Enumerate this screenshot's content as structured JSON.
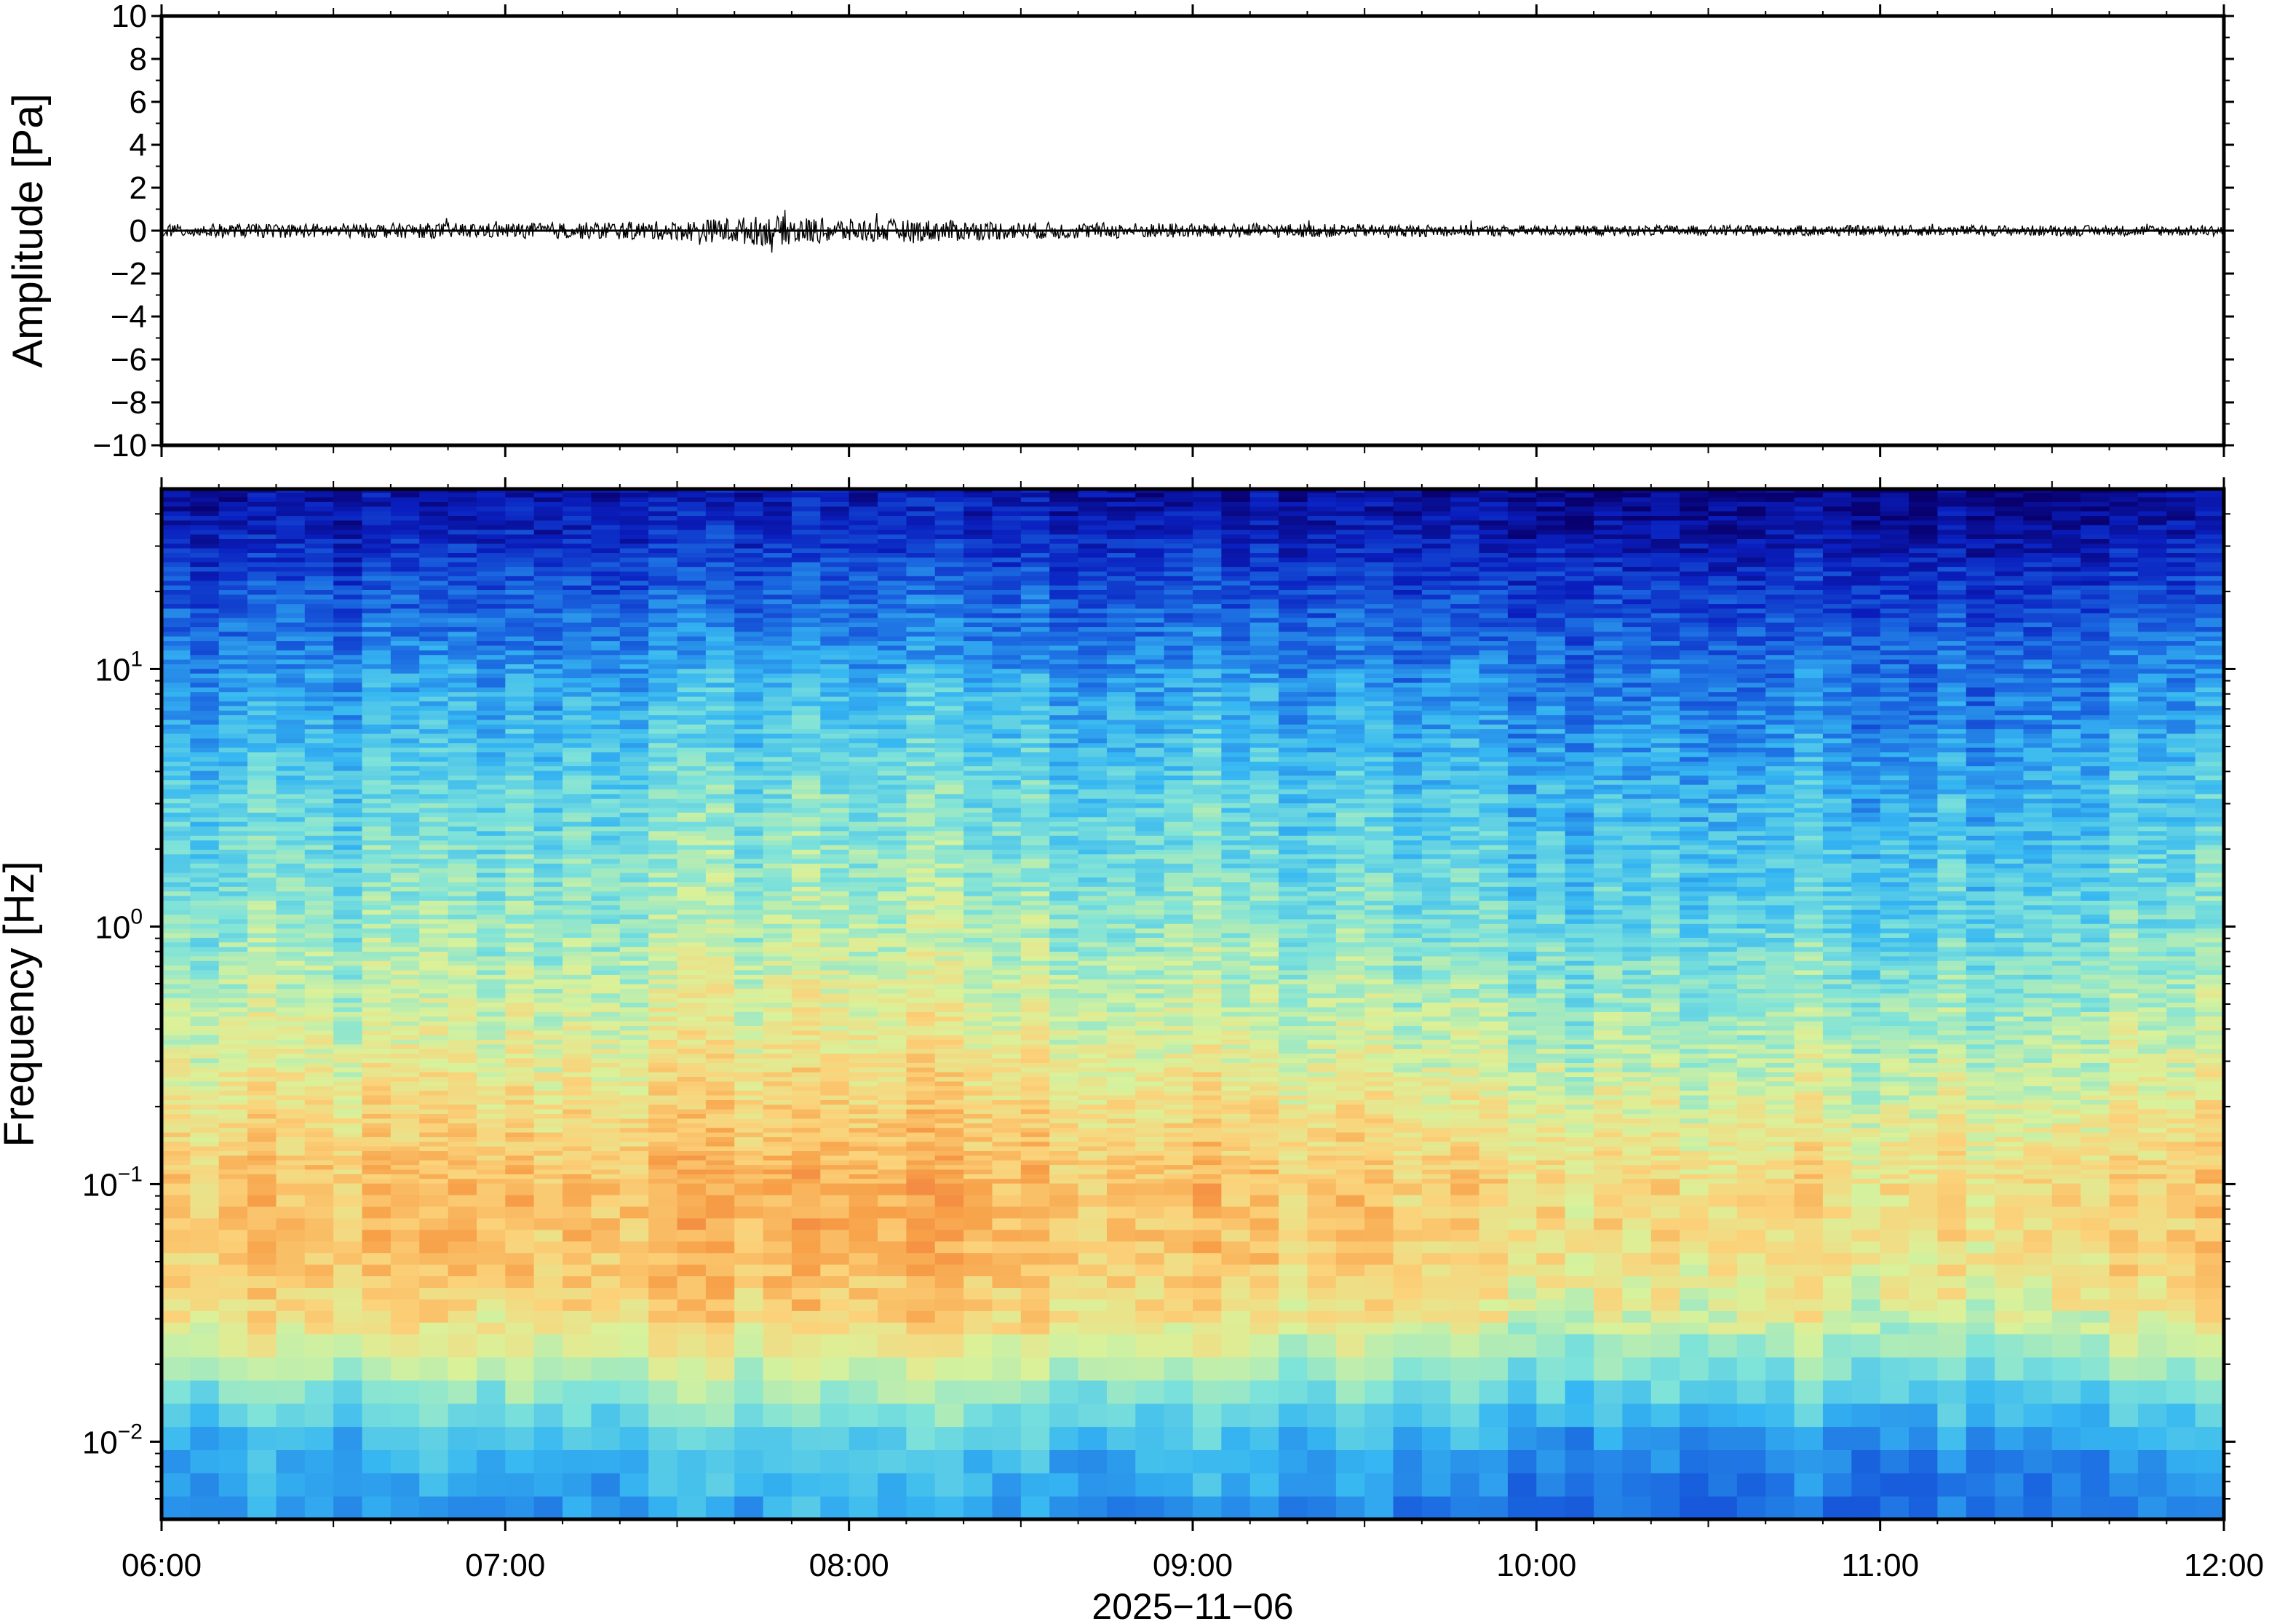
{
  "chart_data": [
    {
      "type": "line",
      "ylabel": "Amplitude [Pa]",
      "ylim": [
        -10,
        10
      ],
      "yticks": [
        10,
        8,
        6,
        4,
        2,
        0,
        -2,
        -4,
        -6,
        -8,
        -10
      ],
      "ytick_labels": [
        "10",
        "8",
        "6",
        "4",
        "2",
        "0",
        "−2",
        "−4",
        "−6",
        "−8",
        "−10"
      ],
      "xlim": [
        "06:00",
        "12:00"
      ],
      "series": [
        {
          "color": "#000000",
          "x_hours": [
            6.0,
            6.5,
            7.0,
            7.5,
            7.75,
            8.0,
            8.3,
            8.5,
            9.0,
            9.5,
            10.0,
            10.5,
            11.0,
            11.5,
            12.0
          ],
          "envelope_pa": [
            0.3,
            0.35,
            0.35,
            0.45,
            0.7,
            0.55,
            0.5,
            0.4,
            0.35,
            0.3,
            0.25,
            0.25,
            0.25,
            0.25,
            0.25
          ]
        }
      ]
    },
    {
      "type": "heatmap",
      "ylabel": "Frequency [Hz]",
      "yscale": "log",
      "ylim": [
        0.005,
        50
      ],
      "yticks": [
        {
          "value": 10,
          "base": "10",
          "exp": "1"
        },
        {
          "value": 1,
          "base": "10",
          "exp": "0"
        },
        {
          "value": 0.1,
          "base": "10",
          "exp": "−1"
        },
        {
          "value": 0.01,
          "base": "10",
          "exp": "−2"
        }
      ],
      "xlim": [
        "06:00",
        "12:00"
      ],
      "xtick_labels": [
        "06:00",
        "07:00",
        "08:00",
        "09:00",
        "10:00",
        "11:00",
        "12:00"
      ],
      "xlabel": "2025−11−06",
      "colormap": [
        "#08006e",
        "#0a1fbf",
        "#1a66e0",
        "#36b7f2",
        "#7fe3d9",
        "#d9f29a",
        "#fbd27a",
        "#f7a048",
        "#ee6a3a"
      ],
      "power_profile_by_frequency": {
        "log10_hz": [
          -2.3,
          -2.0,
          -1.7,
          -1.5,
          -1.3,
          -1.0,
          -0.7,
          -0.5,
          0.0,
          0.5,
          1.0,
          1.3,
          1.5,
          1.7
        ],
        "relative_level": [
          0.28,
          0.36,
          0.55,
          0.68,
          0.74,
          0.76,
          0.68,
          0.62,
          0.5,
          0.42,
          0.3,
          0.2,
          0.12,
          0.05
        ]
      },
      "activity_by_time": {
        "x_hours": [
          6.0,
          6.5,
          7.0,
          7.5,
          8.0,
          8.5,
          9.0,
          9.5,
          10.0,
          10.5,
          11.0,
          11.5,
          12.0
        ],
        "relative_offset": [
          0.0,
          0.02,
          0.03,
          0.06,
          0.09,
          0.05,
          0.03,
          0.0,
          -0.03,
          -0.04,
          -0.03,
          -0.02,
          0.0
        ]
      }
    }
  ]
}
